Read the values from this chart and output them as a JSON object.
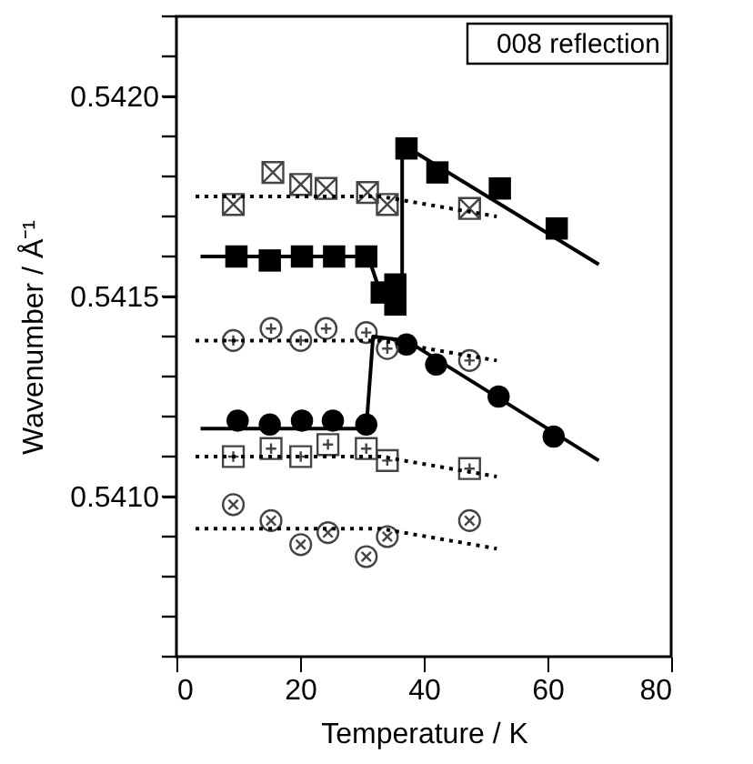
{
  "chart_data": {
    "type": "scatter",
    "xlabel": "Temperature / K",
    "ylabel": "Wavenumber / Å⁻¹",
    "xlim": [
      0,
      80
    ],
    "xticks": [
      0,
      20,
      40,
      60,
      80
    ],
    "ylim": [
      0.5406,
      0.5422
    ],
    "yticks": [
      {
        "value": 0.5406,
        "label": null
      },
      {
        "value": 0.5407,
        "label": null
      },
      {
        "value": 0.5408,
        "label": null
      },
      {
        "value": 0.5409,
        "label": null
      },
      {
        "value": 0.541,
        "label": "0.5410"
      },
      {
        "value": 0.5411,
        "label": null
      },
      {
        "value": 0.5412,
        "label": null
      },
      {
        "value": 0.5413,
        "label": null
      },
      {
        "value": 0.5414,
        "label": null
      },
      {
        "value": 0.5415,
        "label": "0.5415"
      },
      {
        "value": 0.5416,
        "label": null
      },
      {
        "value": 0.5417,
        "label": null
      },
      {
        "value": 0.5418,
        "label": null
      },
      {
        "value": 0.5419,
        "label": null
      },
      {
        "value": 0.542,
        "label": "0.5420"
      },
      {
        "value": 0.5421,
        "label": null
      },
      {
        "value": 0.5422,
        "label": null
      }
    ],
    "grid": false,
    "annotations": [
      "008 reflection"
    ],
    "series": [
      {
        "marker": "square",
        "color": "#000000",
        "x": [
          9.7,
          15.1,
          20.3,
          25.5,
          30.7,
          33.2,
          35.4,
          35.4,
          37.2,
          42.2,
          52.3,
          61.5
        ],
        "values": [
          0.5416,
          0.54159,
          0.5416,
          0.5416,
          0.5416,
          0.54151,
          0.54153,
          0.54148,
          0.54187,
          0.54181,
          0.54177,
          0.54167
        ]
      },
      {
        "marker": "circle",
        "color": "#000000",
        "x": [
          9.9,
          15.1,
          20.3,
          25.3,
          30.7,
          37.2,
          42.0,
          52.1,
          61.0
        ],
        "values": [
          0.54119,
          0.54118,
          0.54119,
          0.54119,
          0.54118,
          0.54138,
          0.54133,
          0.54125,
          0.54115
        ]
      },
      {
        "marker": "cross",
        "color": "#444444",
        "x": [
          9.2,
          15.6,
          20.1,
          24.2,
          30.9,
          34.1,
          47.4
        ],
        "values": [
          0.54173,
          0.54181,
          0.54178,
          0.54177,
          0.54176,
          0.54173,
          0.54172
        ]
      },
      {
        "marker": "cross",
        "color": "#444444",
        "x": [
          9.2,
          15.3,
          20.1,
          24.2,
          30.7,
          34.1,
          47.4
        ],
        "values": [
          0.54139,
          0.54142,
          0.54139,
          0.54142,
          0.54141,
          0.54137,
          0.54134
        ]
      },
      {
        "marker": "cross",
        "color": "#444444",
        "x": [
          9.2,
          15.3,
          20.1,
          24.5,
          30.7,
          34.1,
          47.4
        ],
        "values": [
          0.5411,
          0.54112,
          0.5411,
          0.54113,
          0.54112,
          0.54109,
          0.54107
        ]
      },
      {
        "marker": "cross",
        "color": "#444444",
        "x": [
          9.2,
          15.3,
          20.1,
          24.5,
          30.7,
          34.1,
          47.4
        ],
        "values": [
          0.54098,
          0.54094,
          0.54088,
          0.54091,
          0.54085,
          0.5409,
          0.54094
        ]
      },
      {
        "type": "line",
        "marker": "none",
        "line_style": "solid",
        "color": "#000000",
        "x": [
          3.9,
          31.0,
          33.2,
          36.5,
          36.5,
          68.3
        ],
        "values": [
          0.5416,
          0.5416,
          0.5415,
          0.54148,
          0.54188,
          0.54158
        ]
      },
      {
        "type": "line",
        "marker": "none",
        "line_style": "solid",
        "color": "#000000",
        "x": [
          3.9,
          30.7,
          31.8,
          37.2,
          68.3
        ],
        "values": [
          0.54117,
          0.54117,
          0.5414,
          0.54139,
          0.54109
        ]
      },
      {
        "type": "line",
        "line_style": "dotted",
        "color": "#000000",
        "x": [
          3.1,
          33.0,
          51.8
        ],
        "values": [
          0.54175,
          0.54175,
          0.5417
        ]
      },
      {
        "type": "line",
        "line_style": "dotted",
        "color": "#000000",
        "x": [
          3.1,
          33.0,
          51.8
        ],
        "values": [
          0.54139,
          0.54139,
          0.54134
        ]
      },
      {
        "type": "line",
        "line_style": "dotted",
        "color": "#000000",
        "x": [
          3.1,
          33.0,
          51.8
        ],
        "values": [
          0.5411,
          0.5411,
          0.54105
        ]
      },
      {
        "type": "line",
        "line_style": "dotted",
        "color": "#000000",
        "x": [
          3.1,
          33.0,
          51.8
        ],
        "values": [
          0.54092,
          0.54092,
          0.54087
        ]
      }
    ]
  }
}
